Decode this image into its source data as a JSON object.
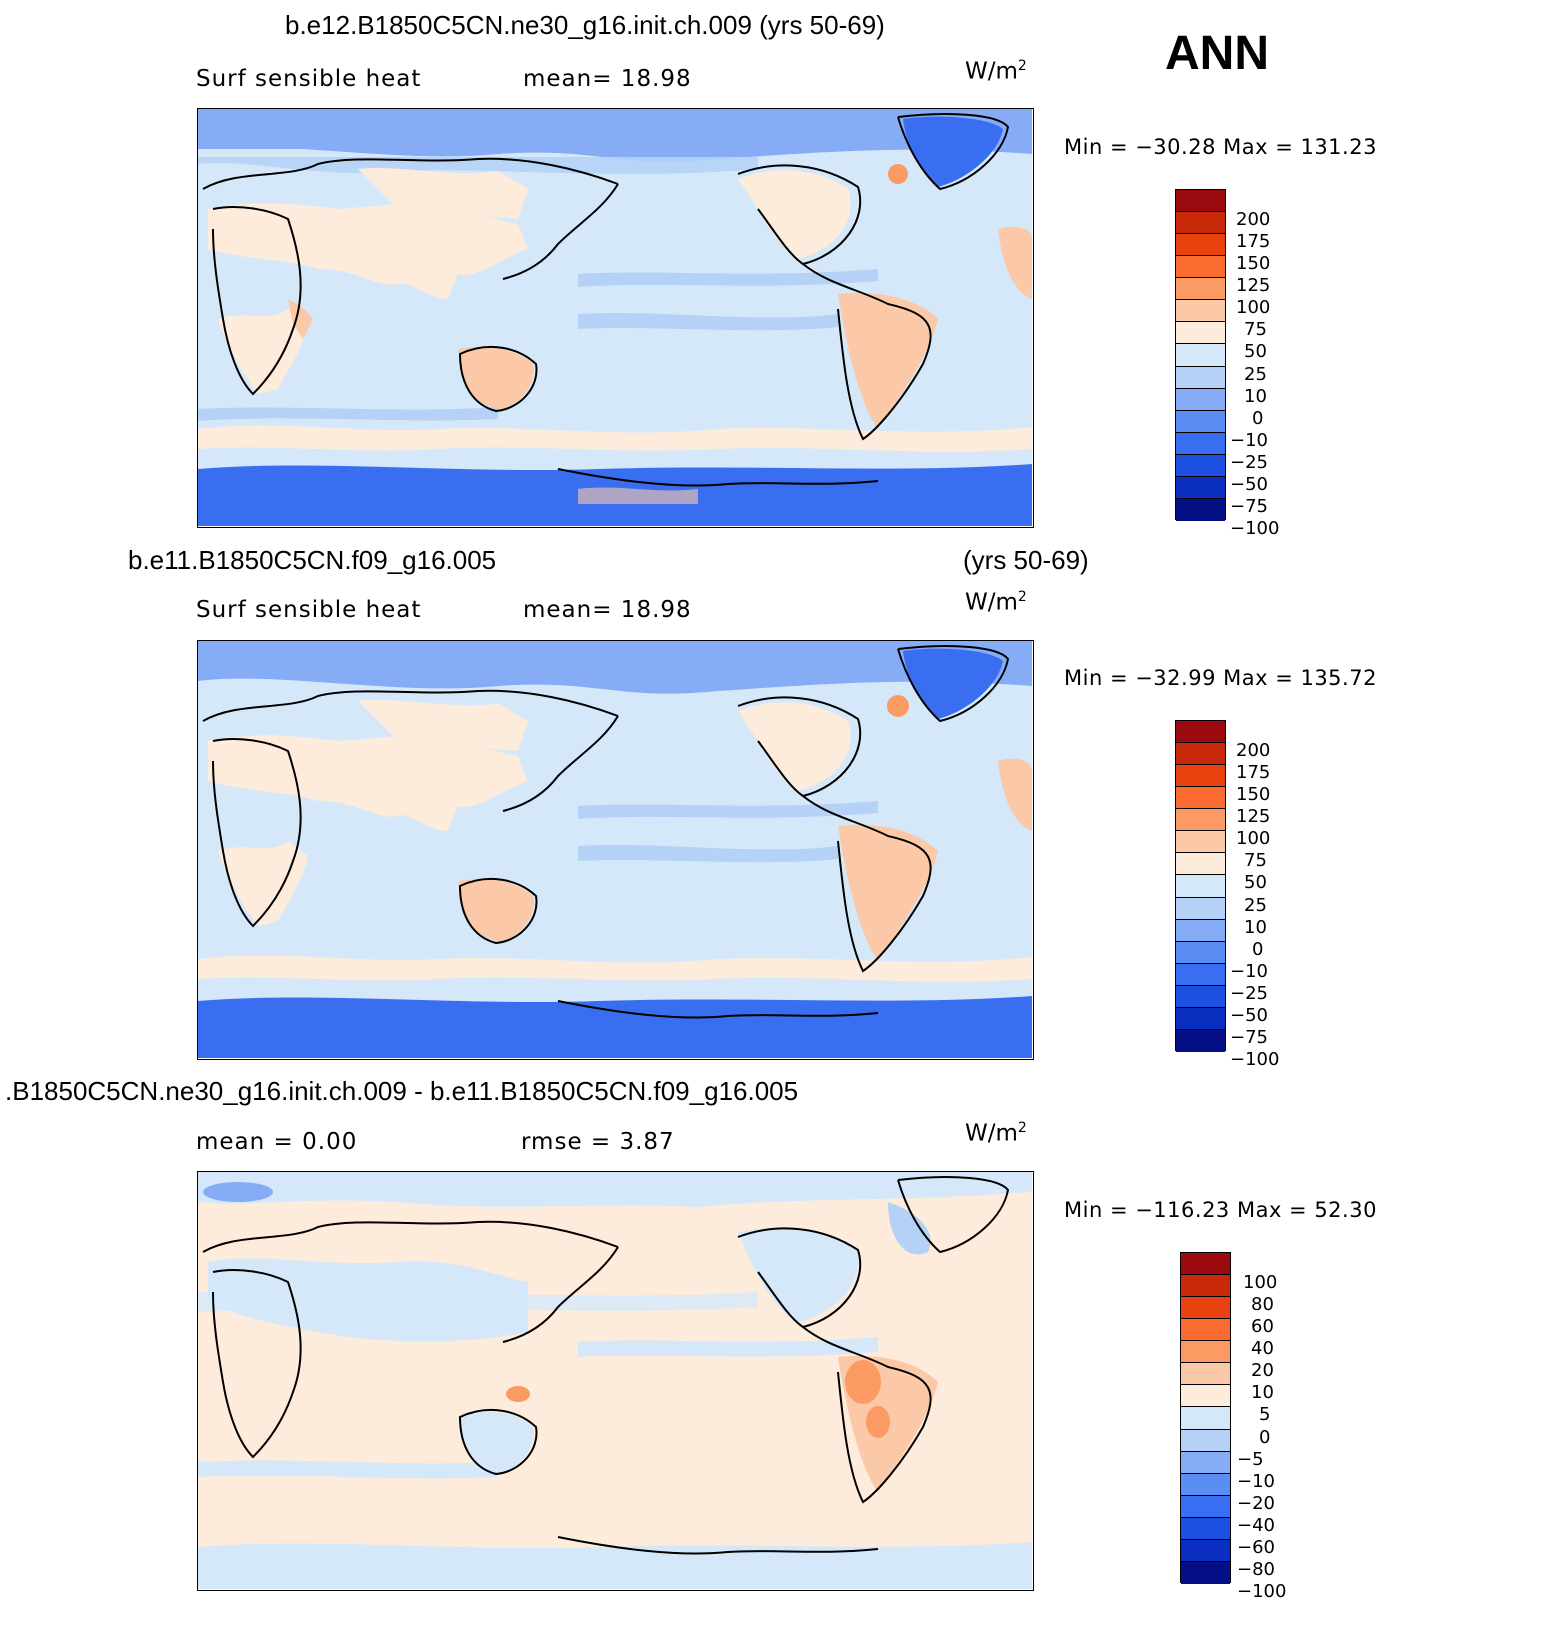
{
  "season": "ANN",
  "units_base": "W/m",
  "units_exp": "2",
  "panels": [
    {
      "title": "b.e12.B1850C5CN.ne30_g16.init.ch.009 (yrs 50-69)",
      "title_right": "",
      "left_label": "Surf  sensible  heat",
      "stat1": "mean=   18.98",
      "stat2": "",
      "minmax": "Min  =  −30.28  Max  =  131.23",
      "colors": [
        "#9a0a0e",
        "#c8290a",
        "#e8420f",
        "#fb6a2e",
        "#fb9a63",
        "#fcc9a8",
        "#fdebdb",
        "#d5e8fa",
        "#b5d1f5",
        "#86acf6",
        "#5a8ef4",
        "#3a6ef1",
        "#1d4fe0",
        "#0a2fc0",
        "#050f85"
      ],
      "levels": [
        "200",
        "175",
        "150",
        "125",
        "100",
        "75",
        "50",
        "25",
        "10",
        "0",
        "−10",
        "−25",
        "−50",
        "−75",
        "−100"
      ]
    },
    {
      "title": "b.e11.B1850C5CN.f09_g16.005",
      "title_right": "(yrs 50-69)",
      "left_label": "Surf  sensible  heat",
      "stat1": "mean=   18.98",
      "stat2": "",
      "minmax": "Min  =  −32.99  Max  =  135.72",
      "colors": [
        "#9a0a0e",
        "#c8290a",
        "#e8420f",
        "#fb6a2e",
        "#fb9a63",
        "#fcc9a8",
        "#fdebdb",
        "#d5e8fa",
        "#b5d1f5",
        "#86acf6",
        "#5a8ef4",
        "#3a6ef1",
        "#1d4fe0",
        "#0a2fc0",
        "#050f85"
      ],
      "levels": [
        "200",
        "175",
        "150",
        "125",
        "100",
        "75",
        "50",
        "25",
        "10",
        "0",
        "−10",
        "−25",
        "−50",
        "−75",
        "−100"
      ]
    },
    {
      "title": ".B1850C5CN.ne30_g16.init.ch.009 - b.e11.B1850C5CN.f09_g16.005",
      "title_right": "",
      "left_label": "mean  =      0.00",
      "stat1": "rmse  =      3.87",
      "stat2": "",
      "minmax": "Min  =  −116.23  Max  =    52.30",
      "colors": [
        "#9a0a0e",
        "#c8290a",
        "#e8420f",
        "#fb6a2e",
        "#fb9a63",
        "#fcc9a8",
        "#fdebdb",
        "#d5e8fa",
        "#b5d1f5",
        "#86acf6",
        "#5a8ef4",
        "#3a6ef1",
        "#1d4fe0",
        "#0a2fc0",
        "#050f85"
      ],
      "levels": [
        "100",
        "80",
        "60",
        "40",
        "20",
        "10",
        "5",
        "0",
        "−5",
        "−10",
        "−20",
        "−40",
        "−60",
        "−80",
        "−100"
      ]
    }
  ]
}
